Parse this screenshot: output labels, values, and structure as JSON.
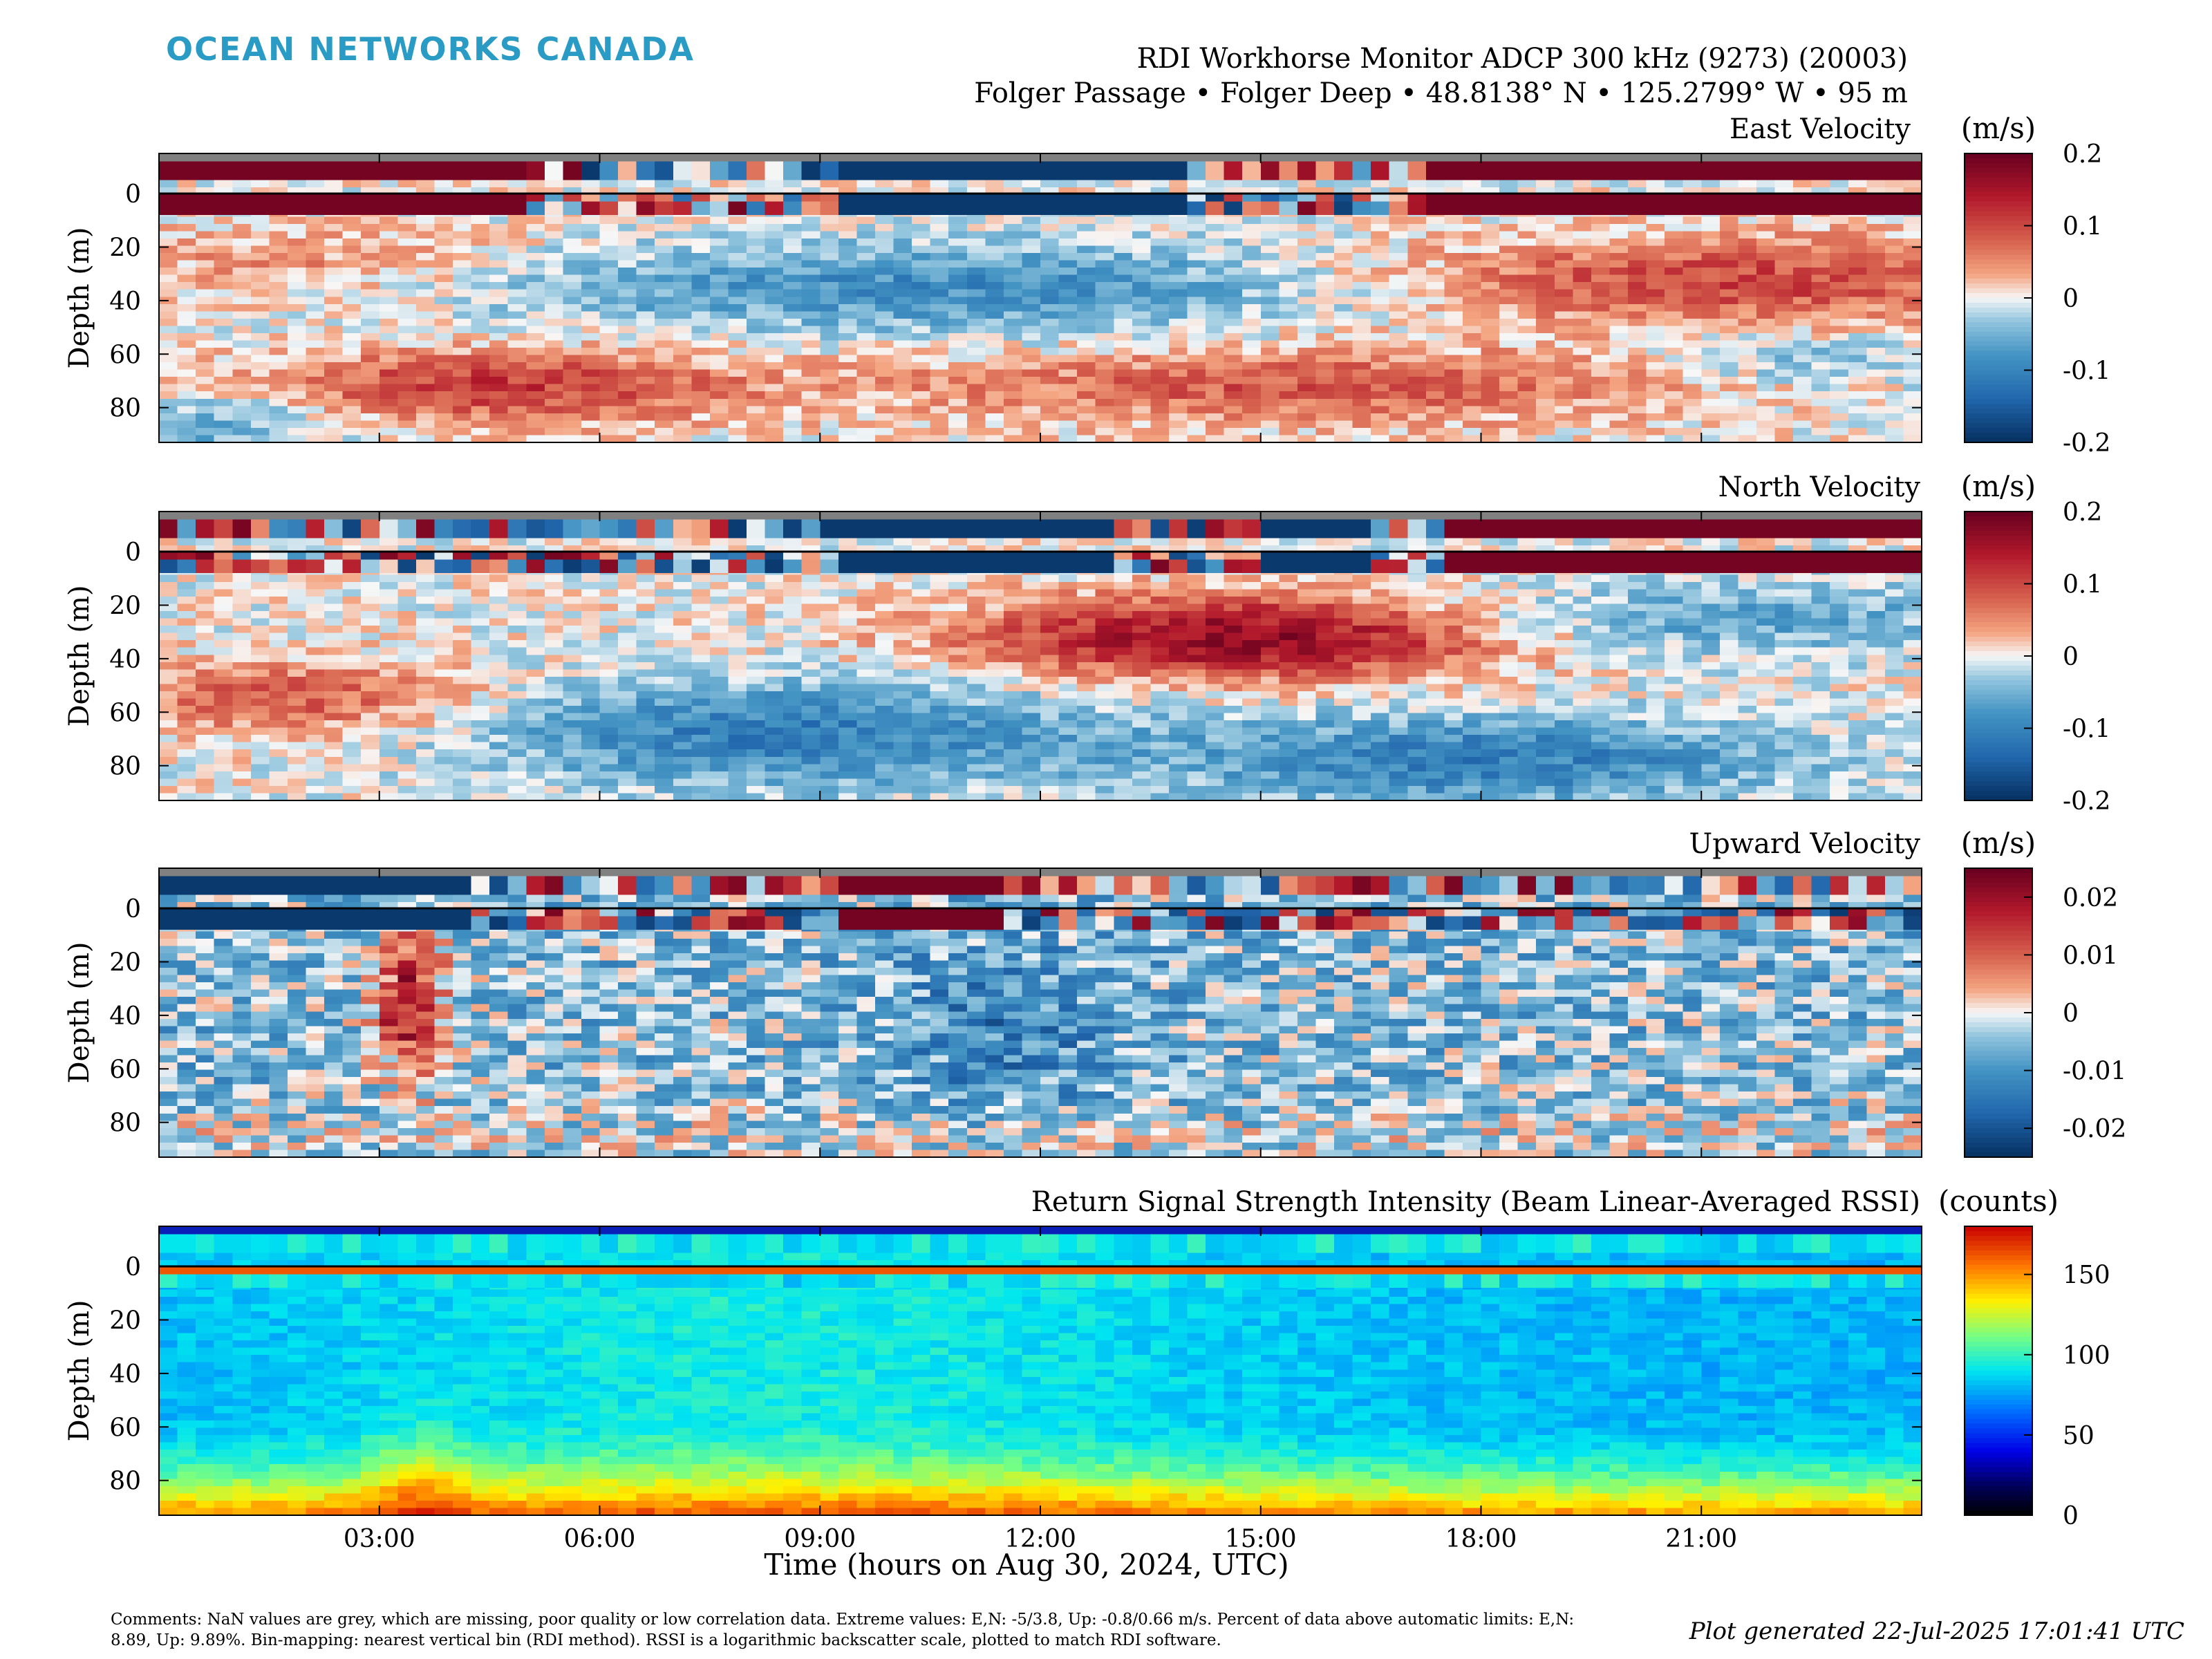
{
  "header": {
    "logo": "OCEAN NETWORKS CANADA",
    "logo_color": "#2a9bc4",
    "title_line1": "RDI Workhorse Monitor ADCP 300 kHz (9273) (20003)",
    "title_line2": "Folger Passage • Folger Deep • 48.8138° N • 125.2799° W • 95 m"
  },
  "footer": {
    "comment": "Comments: NaN values are grey, which are missing, poor quality or low correlation data. Extreme values: E,N: -5/3.8, Up: -0.8/0.66 m/s. Percent of data above automatic limits: E,N: 8.89, Up: 9.89%. Bin-mapping: nearest vertical bin (RDI method). RSSI is a logarithmic backscatter scale, plotted to match RDI software.",
    "generated": "Plot generated 22-Jul-2025 17:01:41 UTC"
  },
  "chart_data": [
    {
      "type": "heatmap",
      "title": "East Velocity",
      "ylabel": "Depth (m)",
      "ylim": [
        -15,
        93
      ],
      "yticks": [
        "0",
        "20",
        "40",
        "60",
        "80"
      ],
      "xlim_hours": [
        0,
        24
      ],
      "colorbar_unit": "(m/s)",
      "colorbar_ticks": [
        "0.2",
        "0.1",
        "0",
        "-0.1",
        "-0.2"
      ],
      "colorbar_range": [
        -0.2,
        0.2
      ],
      "colormap": "diverging-blue-red",
      "description": "Surface band strongly positive early and late, negative 09:00-14:00; 20-50 m negative mid-day and positive after 17:00; 60-85 m positive 02:00-07:00 and 13:00-20:00."
    },
    {
      "type": "heatmap",
      "title": "North Velocity",
      "ylabel": "Depth (m)",
      "ylim": [
        -15,
        93
      ],
      "yticks": [
        "0",
        "20",
        "40",
        "60",
        "80"
      ],
      "xlim_hours": [
        0,
        24
      ],
      "colorbar_unit": "(m/s)",
      "colorbar_ticks": [
        "0.2",
        "0.1",
        "0",
        "-0.1",
        "-0.2"
      ],
      "colorbar_range": [
        -0.2,
        0.2
      ],
      "colormap": "diverging-blue-red",
      "description": "Strong positive core at 20-45 m between 12:00 and 18:00; negative near-bottom 06:00-12:00 and 15:00-21:00; surface band negative 09:00-13:00 and 15:00-16:30."
    },
    {
      "type": "heatmap",
      "title": "Upward Velocity",
      "ylabel": "Depth (m)",
      "ylim": [
        -15,
        93
      ],
      "yticks": [
        "0",
        "20",
        "40",
        "60",
        "80"
      ],
      "xlim_hours": [
        0,
        24
      ],
      "colorbar_unit": "(m/s)",
      "colorbar_ticks": [
        "0.02",
        "0.01",
        "0",
        "-0.01",
        "-0.02"
      ],
      "colorbar_range": [
        -0.025,
        0.025
      ],
      "colormap": "diverging-blue-red",
      "description": "Mostly weak negative; positive plume at 03:00-04:00 (0-65 m); surface band alternates strongly."
    },
    {
      "type": "heatmap",
      "title": "Return Signal Strength Intensity (Beam Linear-Averaged RSSI)",
      "ylabel": "Depth (m)",
      "xlabel": "Time (hours on Aug 30, 2024, UTC)",
      "ylim": [
        -15,
        93
      ],
      "yticks": [
        "0",
        "20",
        "40",
        "60",
        "80"
      ],
      "xticks": [
        "03:00",
        "06:00",
        "09:00",
        "12:00",
        "15:00",
        "18:00",
        "21:00"
      ],
      "xlim_hours": [
        0,
        24
      ],
      "colorbar_unit": "(counts)",
      "colorbar_ticks": [
        "150",
        "100",
        "50",
        "0"
      ],
      "colorbar_range": [
        0,
        180
      ],
      "colormap": "jet",
      "description": "Surface reflection band ~160 counts at 2-6 m; intensity rises toward bottom (~150 at 85-93 m); mid-water ~75-95 counts, higher between 04:00 and 13:00."
    }
  ]
}
